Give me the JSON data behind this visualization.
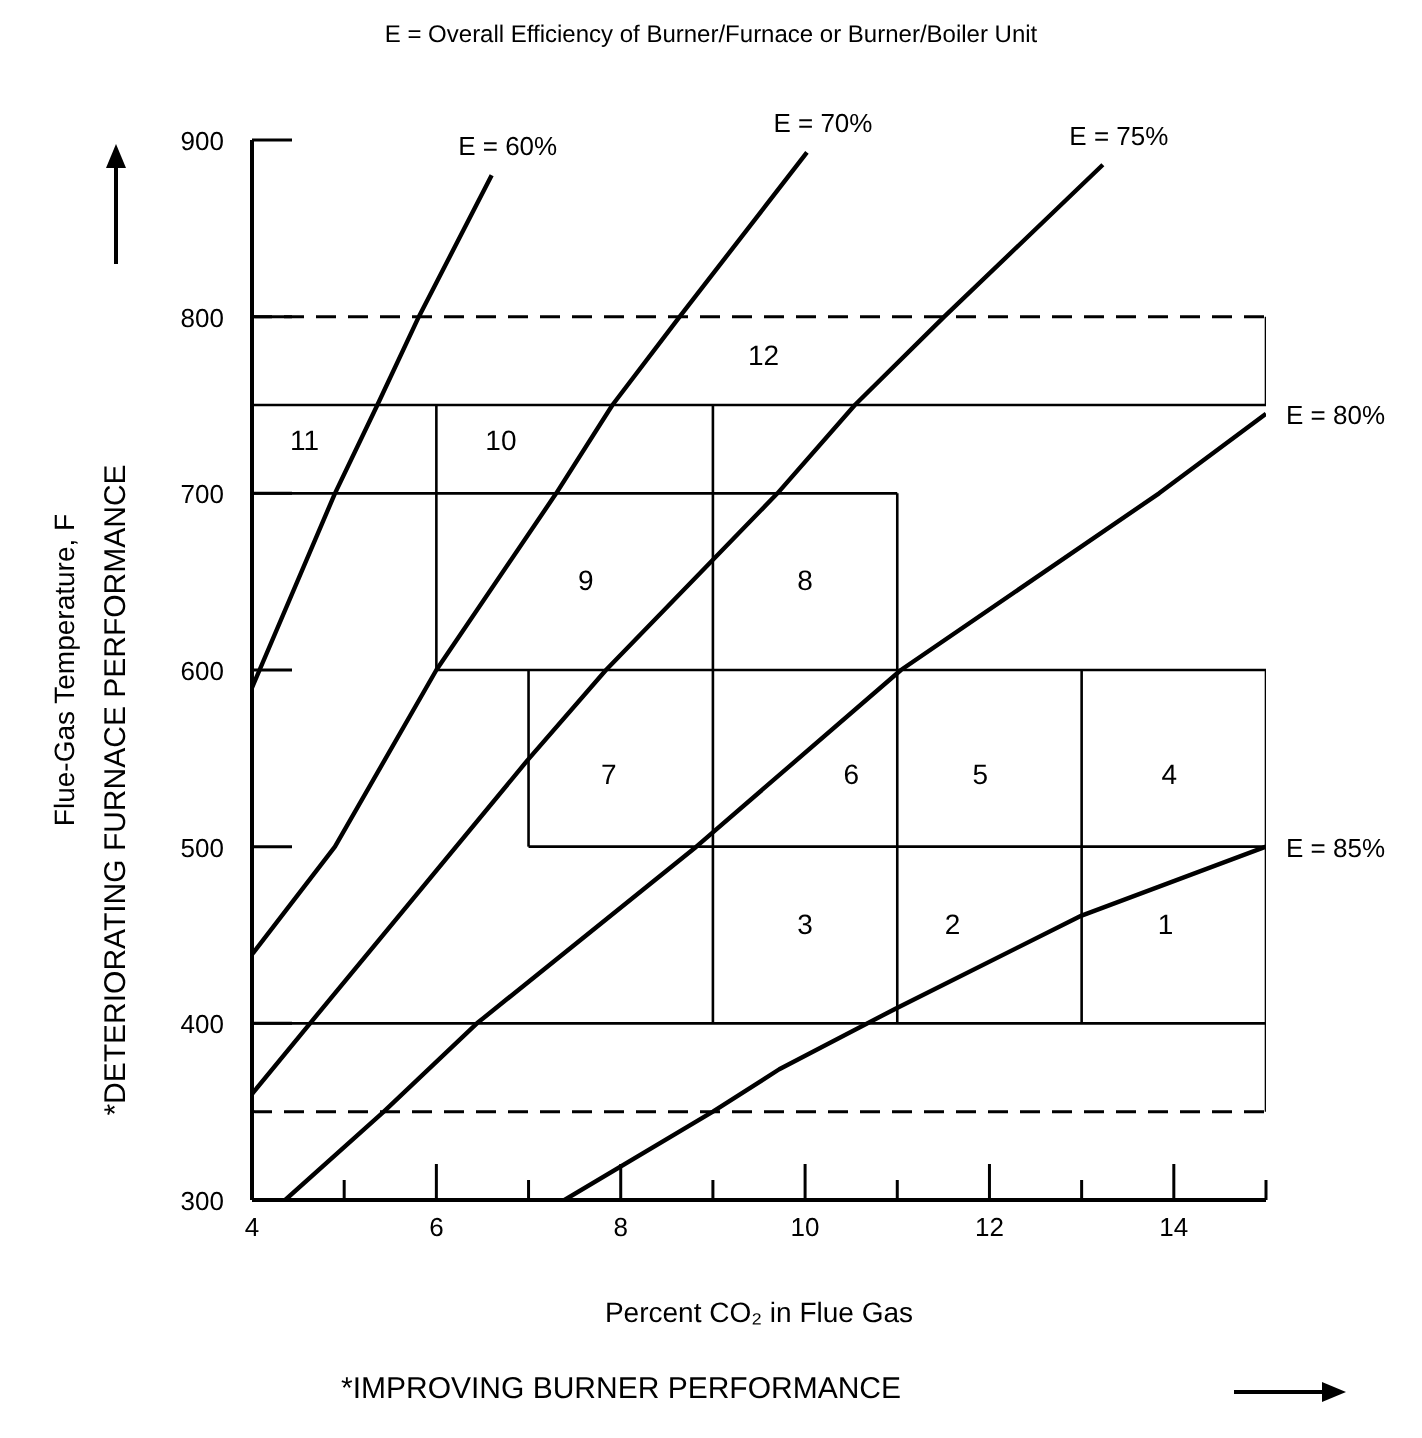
{
  "chart_data": {
    "type": "line",
    "title": "E = Overall Efficiency of Burner/Furnace or Burner/Boiler Unit",
    "xlabel": "Percent CO₂ in Flue Gas",
    "ylabel": "Flue-Gas Temperature, F",
    "xlim": [
      4,
      15
    ],
    "ylim": [
      300,
      900
    ],
    "xticks": [
      4,
      {
        "value": 5,
        "label": null
      },
      6,
      {
        "value": 7,
        "label": null
      },
      8,
      {
        "value": 9,
        "label": null
      },
      10,
      {
        "value": 11,
        "label": null
      },
      12,
      {
        "value": 13,
        "label": null
      },
      14,
      {
        "value": 15,
        "label": null
      }
    ],
    "yticks": [
      300,
      400,
      500,
      600,
      700,
      800,
      900
    ],
    "marker": "none",
    "line_style": "solid",
    "series": [
      {
        "name": "E = 60%",
        "color": "#000000",
        "x": [
          4,
          4.9,
          5.36,
          5.81,
          6.6
        ],
        "values": [
          590,
          700,
          750,
          800,
          880
        ]
      },
      {
        "name": "E = 70%",
        "color": "#000000",
        "x": [
          4,
          4.9,
          6,
          7.3,
          7.91,
          8.64,
          10.02
        ],
        "values": [
          439,
          500,
          600,
          700,
          750,
          800,
          893
        ]
      },
      {
        "name": "E = 75%",
        "color": "#000000",
        "x": [
          4,
          4.63,
          6.99,
          7.84,
          9.7,
          10.54,
          11.51,
          13.23
        ],
        "values": [
          360,
          400,
          549,
          600,
          700,
          750,
          800,
          886
        ]
      },
      {
        "name": "E = 80%",
        "color": "#000000",
        "x": [
          4.36,
          5.43,
          6.44,
          8.82,
          11.04,
          13.84,
          15
        ],
        "values": [
          300,
          350,
          400,
          500,
          600,
          700,
          745
        ]
      },
      {
        "name": "E = 85%",
        "color": "#000000",
        "x": [
          7.39,
          9,
          9.72,
          10.97,
          13,
          15
        ],
        "values": [
          300,
          350,
          374,
          408,
          461,
          500
        ]
      },
      {
        "color": "#000000",
        "x": [
          4,
          15
        ],
        "values": [
          750,
          750
        ]
      },
      {
        "color": "#000000",
        "x": [
          15,
          15
        ],
        "values": [
          750,
          800
        ]
      },
      {
        "color": "#000000",
        "x": [
          4,
          11
        ],
        "values": [
          700,
          700
        ]
      },
      {
        "color": "#000000",
        "x": [
          6,
          15
        ],
        "values": [
          600,
          600
        ]
      },
      {
        "color": "#000000",
        "x": [
          7,
          15
        ],
        "values": [
          500,
          500
        ]
      },
      {
        "color": "#000000",
        "x": [
          4,
          15
        ],
        "values": [
          400,
          400
        ]
      },
      {
        "color": "#000000",
        "x": [
          6,
          6
        ],
        "values": [
          600,
          750
        ]
      },
      {
        "color": "#000000",
        "x": [
          7,
          7
        ],
        "values": [
          500,
          600
        ]
      },
      {
        "color": "#000000",
        "x": [
          9,
          9
        ],
        "values": [
          400,
          750
        ]
      },
      {
        "color": "#000000",
        "x": [
          11,
          11
        ],
        "values": [
          400,
          700
        ]
      },
      {
        "color": "#000000",
        "x": [
          13,
          13
        ],
        "values": [
          400,
          600
        ]
      },
      {
        "color": "#000000",
        "x": [
          15,
          15
        ],
        "values": [
          350,
          600
        ]
      }
    ],
    "ref_lines": [
      {
        "axis": "y",
        "value": 800,
        "color": "#000000",
        "line_style": "dashed"
      },
      {
        "axis": "y",
        "value": 350,
        "color": "#000000",
        "line_style": "dashed"
      }
    ],
    "annotations": [
      "*IMPROVING BURNER PERFORMANCE",
      "*DETERIORATING FURNACE PERFORMANCE",
      "1",
      "2",
      "3",
      "4",
      "5",
      "6",
      "7",
      "8",
      "9",
      "10",
      "11",
      "12"
    ]
  }
}
